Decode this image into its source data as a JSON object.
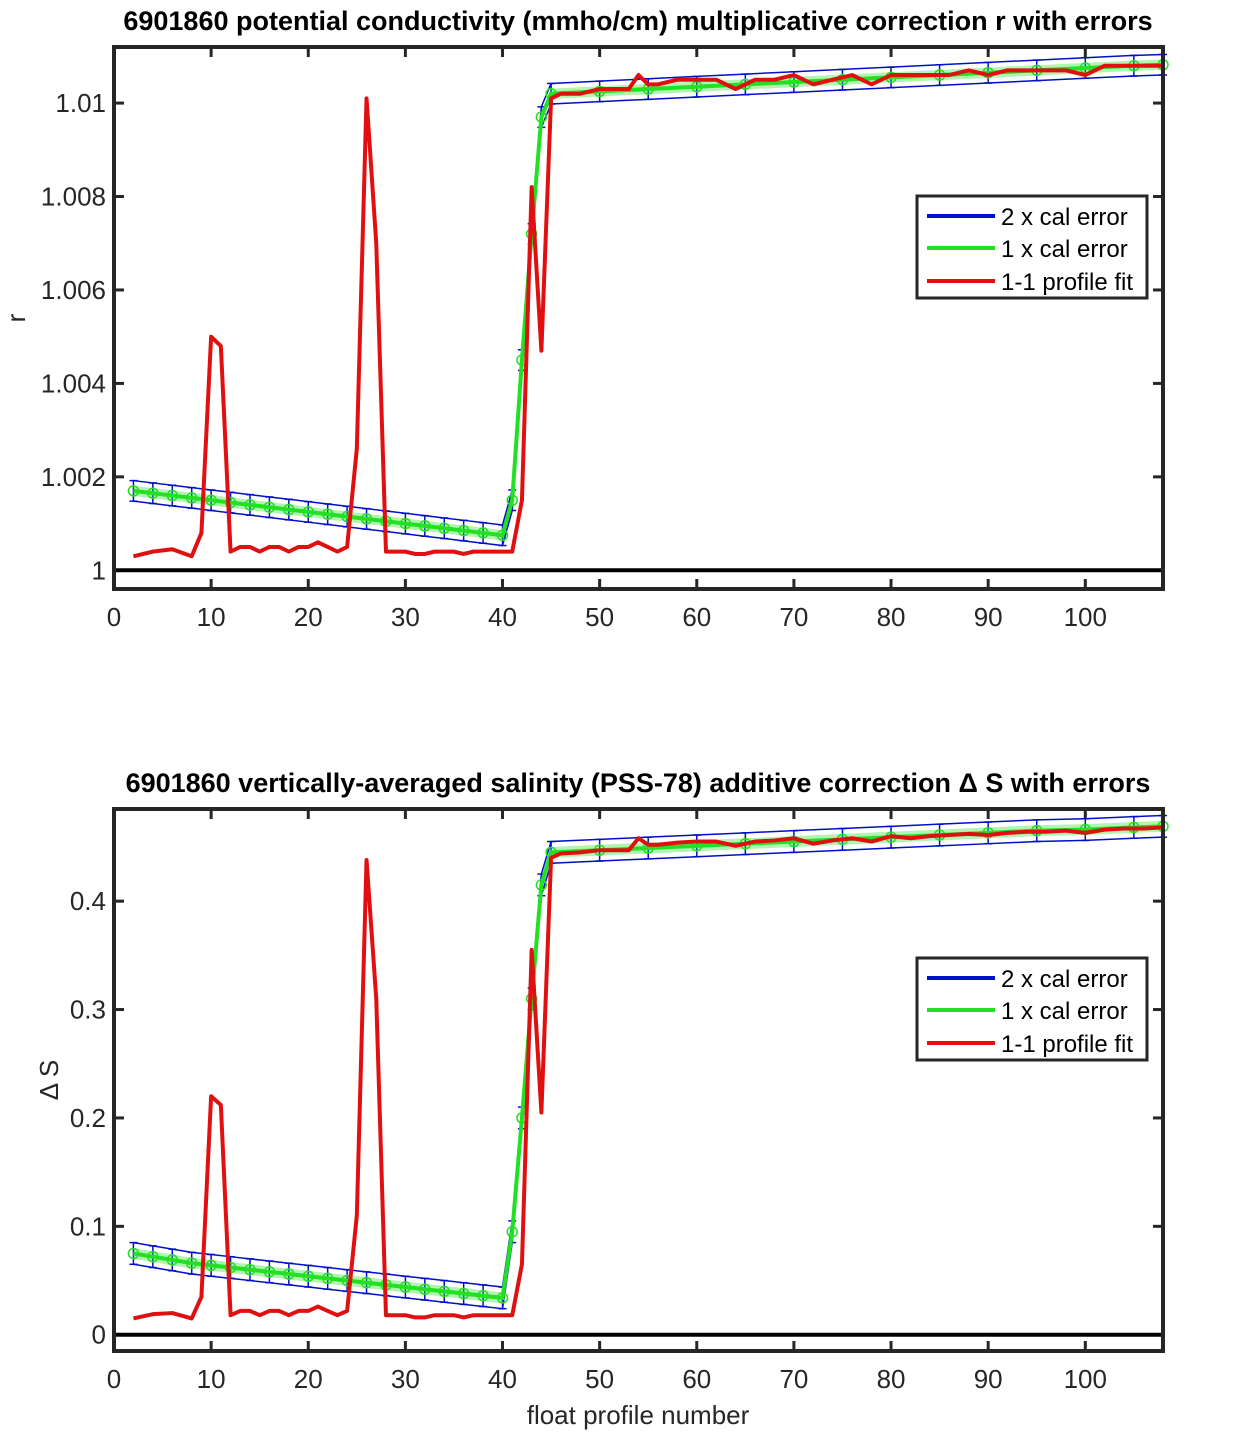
{
  "colors": {
    "cal2": "#0010c8",
    "cal1": "#22e022",
    "fit": "#e01010",
    "axis": "#262626"
  },
  "chart_data": [
    {
      "type": "line",
      "title": "6901860 potential conductivity (mmho/cm) multiplicative correction r with errors",
      "xlabel": "",
      "ylabel": "r",
      "xlim": [
        0,
        108
      ],
      "ylim": [
        0.9996,
        1.0112
      ],
      "xticks": [
        "0",
        "10",
        "20",
        "30",
        "40",
        "50",
        "60",
        "70",
        "80",
        "90",
        "100"
      ],
      "yticks": [
        "1",
        "1.002",
        "1.004",
        "1.006",
        "1.008",
        "1.01"
      ],
      "reference_line": 1,
      "legend": {
        "location": "east",
        "entries": [
          "2 x cal error",
          "1 x cal error",
          "1-1 profile fit"
        ]
      },
      "series": [
        {
          "name": "1 x cal error",
          "x": [
            2,
            4,
            6,
            8,
            10,
            12,
            14,
            16,
            18,
            20,
            22,
            24,
            26,
            28,
            30,
            32,
            34,
            36,
            38,
            40,
            41,
            42,
            43,
            44,
            45,
            50,
            55,
            60,
            65,
            70,
            75,
            80,
            85,
            90,
            95,
            100,
            105,
            108
          ],
          "y": [
            1.0017,
            1.00165,
            1.0016,
            1.00155,
            1.0015,
            1.00145,
            1.0014,
            1.00135,
            1.0013,
            1.00125,
            1.0012,
            1.00115,
            1.0011,
            1.00105,
            1.001,
            1.00095,
            1.0009,
            1.00085,
            1.0008,
            1.00075,
            1.0015,
            1.0045,
            1.0072,
            1.0097,
            1.0102,
            1.01025,
            1.0103,
            1.01035,
            1.0104,
            1.01045,
            1.0105,
            1.01055,
            1.0106,
            1.01065,
            1.0107,
            1.01075,
            1.0108,
            1.01082
          ],
          "err2": 0.00022
        },
        {
          "name": "1-1 profile fit",
          "x": [
            2,
            4,
            6,
            8,
            9,
            10,
            11,
            12,
            13,
            14,
            15,
            16,
            17,
            18,
            19,
            20,
            21,
            22,
            23,
            24,
            25,
            26,
            27,
            28,
            29,
            30,
            31,
            32,
            33,
            34,
            35,
            36,
            37,
            38,
            39,
            40,
            41,
            42,
            43,
            44,
            45,
            46,
            48,
            50,
            52,
            53,
            54,
            55,
            56,
            58,
            60,
            62,
            64,
            66,
            68,
            70,
            72,
            74,
            76,
            78,
            80,
            82,
            84,
            86,
            88,
            90,
            92,
            94,
            96,
            98,
            100,
            102,
            104,
            106,
            108
          ],
          "y": [
            1.0003,
            1.0004,
            1.00045,
            1.0003,
            1.0008,
            1.005,
            1.0048,
            1.0004,
            1.0005,
            1.0005,
            1.0004,
            1.0005,
            1.0005,
            1.0004,
            1.0005,
            1.0005,
            1.0006,
            1.0005,
            1.0004,
            1.0005,
            1.0026,
            1.0101,
            1.007,
            1.0004,
            1.0004,
            1.0004,
            1.00035,
            1.00035,
            1.0004,
            1.0004,
            1.0004,
            1.00035,
            1.0004,
            1.0004,
            1.0004,
            1.0004,
            1.0004,
            1.0015,
            1.0082,
            1.0047,
            1.0101,
            1.0102,
            1.0102,
            1.0103,
            1.0103,
            1.0103,
            1.0106,
            1.0104,
            1.0104,
            1.0105,
            1.0105,
            1.0105,
            1.0103,
            1.0105,
            1.0105,
            1.0106,
            1.0104,
            1.0105,
            1.0106,
            1.0104,
            1.0106,
            1.0106,
            1.0106,
            1.0106,
            1.0107,
            1.0106,
            1.0107,
            1.0107,
            1.0107,
            1.0107,
            1.0106,
            1.0108,
            1.0108,
            1.0108,
            1.0108
          ]
        }
      ]
    },
    {
      "type": "line",
      "title": "6901860 vertically-averaged salinity (PSS-78) additive correction Δ S with errors",
      "xlabel": "float profile number",
      "ylabel": "Δ S",
      "xlim": [
        0,
        108
      ],
      "ylim": [
        -0.015,
        0.485
      ],
      "xticks": [
        "0",
        "10",
        "20",
        "30",
        "40",
        "50",
        "60",
        "70",
        "80",
        "90",
        "100"
      ],
      "yticks": [
        "0",
        "0.1",
        "0.2",
        "0.3",
        "0.4"
      ],
      "reference_line": 0,
      "legend": {
        "location": "east",
        "entries": [
          "2 x cal error",
          "1 x cal error",
          "1-1 profile fit"
        ]
      },
      "series": [
        {
          "name": "1 x cal error",
          "x": [
            2,
            4,
            6,
            8,
            10,
            12,
            14,
            16,
            18,
            20,
            22,
            24,
            26,
            28,
            30,
            32,
            34,
            36,
            38,
            40,
            41,
            42,
            43,
            44,
            45,
            50,
            55,
            60,
            65,
            70,
            75,
            80,
            85,
            90,
            95,
            100,
            105,
            108
          ],
          "y": [
            0.075,
            0.072,
            0.069,
            0.066,
            0.064,
            0.062,
            0.06,
            0.058,
            0.056,
            0.054,
            0.052,
            0.05,
            0.048,
            0.046,
            0.044,
            0.042,
            0.04,
            0.038,
            0.036,
            0.034,
            0.095,
            0.2,
            0.31,
            0.415,
            0.445,
            0.447,
            0.449,
            0.451,
            0.453,
            0.455,
            0.457,
            0.459,
            0.461,
            0.463,
            0.465,
            0.466,
            0.468,
            0.469
          ],
          "err2": 0.01
        },
        {
          "name": "1-1 profile fit",
          "x": [
            2,
            4,
            6,
            8,
            9,
            10,
            11,
            12,
            13,
            14,
            15,
            16,
            17,
            18,
            19,
            20,
            21,
            22,
            23,
            24,
            25,
            26,
            27,
            28,
            29,
            30,
            31,
            32,
            33,
            34,
            35,
            36,
            37,
            38,
            39,
            40,
            41,
            42,
            43,
            44,
            45,
            46,
            48,
            50,
            52,
            53,
            54,
            55,
            56,
            58,
            60,
            62,
            64,
            66,
            68,
            70,
            72,
            74,
            76,
            78,
            80,
            82,
            84,
            86,
            88,
            90,
            92,
            94,
            96,
            98,
            100,
            102,
            104,
            106,
            108
          ],
          "y": [
            0.015,
            0.019,
            0.02,
            0.015,
            0.035,
            0.22,
            0.212,
            0.018,
            0.022,
            0.022,
            0.018,
            0.022,
            0.022,
            0.018,
            0.022,
            0.022,
            0.026,
            0.022,
            0.018,
            0.022,
            0.11,
            0.438,
            0.31,
            0.018,
            0.018,
            0.018,
            0.016,
            0.016,
            0.018,
            0.018,
            0.018,
            0.016,
            0.018,
            0.018,
            0.018,
            0.018,
            0.018,
            0.065,
            0.355,
            0.205,
            0.44,
            0.444,
            0.445,
            0.447,
            0.447,
            0.447,
            0.458,
            0.452,
            0.452,
            0.454,
            0.455,
            0.455,
            0.451,
            0.455,
            0.456,
            0.458,
            0.453,
            0.456,
            0.458,
            0.455,
            0.46,
            0.458,
            0.46,
            0.461,
            0.462,
            0.461,
            0.463,
            0.464,
            0.464,
            0.465,
            0.463,
            0.466,
            0.467,
            0.467,
            0.468
          ]
        }
      ]
    }
  ]
}
